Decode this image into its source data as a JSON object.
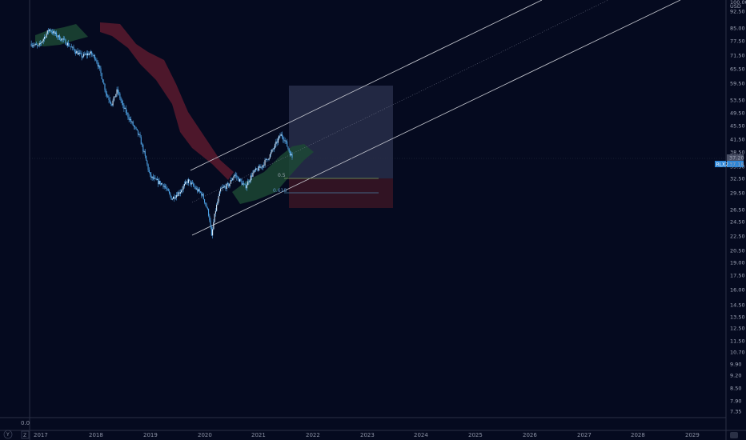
{
  "chart_data": {
    "type": "candlestick",
    "price_axis": {
      "unit_label": "USD",
      "scale": "log",
      "ticks": [
        "100.00",
        "92.50",
        "85.00",
        "77.50",
        "71.50",
        "65.50",
        "59.50",
        "53.50",
        "49.50",
        "45.50",
        "41.50",
        "38.50",
        "35.50",
        "32.50",
        "29.50",
        "26.50",
        "24.50",
        "22.50",
        "20.50",
        "19.00",
        "17.50",
        "16.00",
        "14.50",
        "13.50",
        "12.50",
        "11.50",
        "10.70",
        "9.90",
        "9.20",
        "8.50",
        "7.90",
        "7.35"
      ],
      "last_price_label": "37.20",
      "last_price_sublabel": "37.18",
      "symbol_tag": "RLX2"
    },
    "time_axis": {
      "ticks": [
        "2017",
        "2018",
        "2019",
        "2020",
        "2021",
        "2022",
        "2023",
        "2024",
        "2025",
        "2026",
        "2027",
        "2028",
        "2029"
      ]
    },
    "indicator_pane": {
      "value_label": "0.0"
    },
    "fib_levels": [
      {
        "label": "0.5",
        "value": 32.5
      },
      {
        "label": "0.618",
        "value": 29.5
      }
    ],
    "position_tool": {
      "upper_price": 59.5,
      "entry_price": 32.5,
      "lower_price": 26.5
    },
    "colors": {
      "background": "#050a1f",
      "candles": "#4ea3e6",
      "cloud_bear": "#5a1a2e",
      "cloud_bull": "#1d4a35",
      "channel": "#c9cbd3",
      "fib_05": "#7aa05a",
      "fib_0618": "#4b7fa4",
      "price_tag": "#2f86d6"
    },
    "corner_icons": {
      "bottom_left": "Z",
      "top_left_button": "Y"
    }
  }
}
